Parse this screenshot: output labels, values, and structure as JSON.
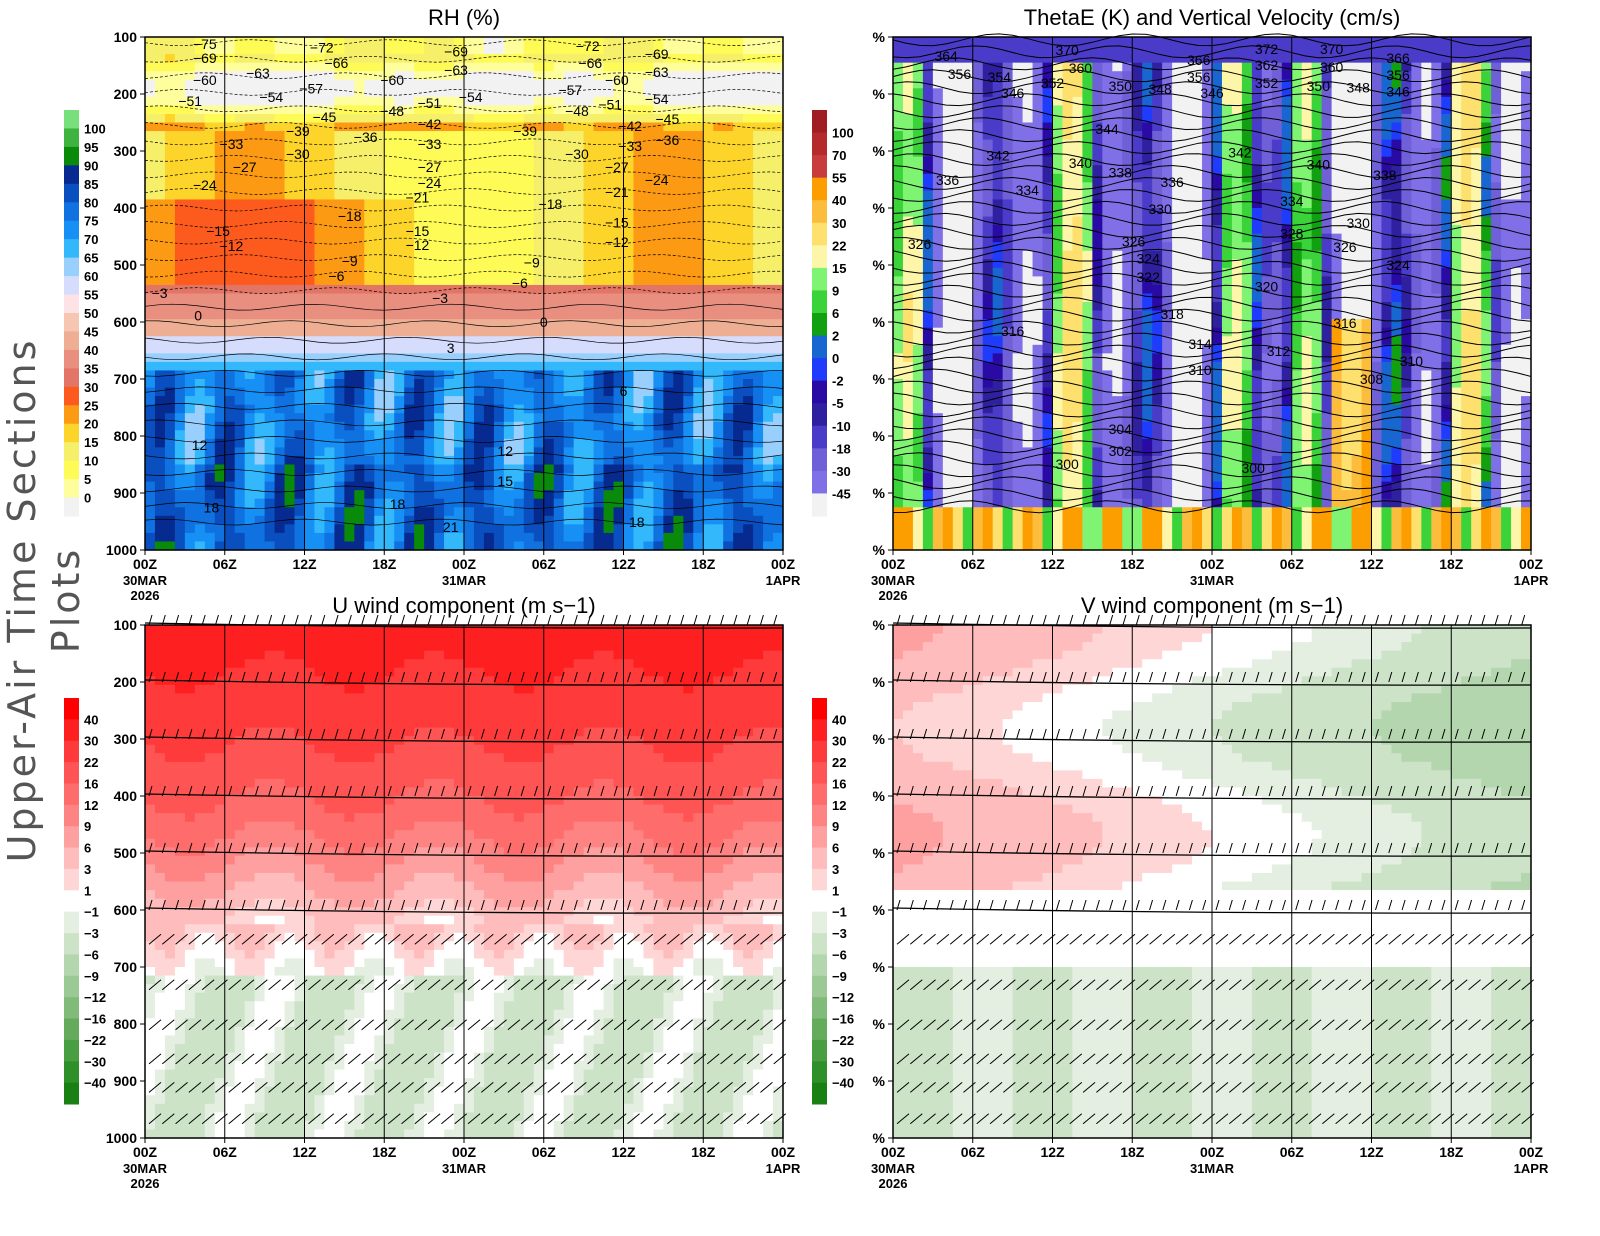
{
  "side_title": "Upper-Air Time Sections Plots",
  "time_axis": {
    "ticks": [
      "00Z",
      "06Z",
      "12Z",
      "18Z",
      "00Z",
      "06Z",
      "12Z",
      "18Z",
      "00Z"
    ],
    "dates": [
      [
        "30MAR",
        "2026"
      ],
      [],
      [],
      [],
      [
        "31MAR"
      ],
      [],
      [],
      [],
      [
        "1APR"
      ]
    ]
  },
  "chart_data": [
    {
      "type": "heatmap",
      "title": "RH (%)",
      "ylabels": [
        "100",
        "200",
        "300",
        "400",
        "500",
        "600",
        "700",
        "800",
        "900",
        "1000"
      ],
      "ylim": [
        100,
        1000
      ],
      "xlim": [
        0,
        48
      ],
      "colorbar": {
        "labels": [
          "100",
          "95",
          "90",
          "85",
          "80",
          "75",
          "70",
          "65",
          "60",
          "55",
          "50",
          "45",
          "40",
          "35",
          "30",
          "25",
          "20",
          "15",
          "10",
          "5",
          "0"
        ],
        "colors": [
          "#77e07a",
          "#3fb33f",
          "#0a8a0a",
          "#062a8f",
          "#0a4fbf",
          "#0f72e0",
          "#1790f5",
          "#33b8fc",
          "#98cffc",
          "#d5dcfc",
          "#fde3e5",
          "#f6c6b2",
          "#eeae94",
          "#e98f80",
          "#e27566",
          "#fd5a1e",
          "#fd9a14",
          "#fdd52a",
          "#f6ef6a",
          "#fefb57",
          "#fefe9d",
          "#f2f2f2"
        ]
      },
      "contour_labels": [
        [
          "-75",
          4.5,
          112
        ],
        [
          "-69",
          4.5,
          137
        ],
        [
          "-60",
          4.5,
          175
        ],
        [
          "-51",
          3.4,
          212
        ],
        [
          "-63",
          8.5,
          163
        ],
        [
          "-54",
          9.5,
          205
        ],
        [
          "-57",
          12.5,
          190
        ],
        [
          "-72",
          13.3,
          118
        ],
        [
          "-66",
          14.4,
          146
        ],
        [
          "-45",
          13.5,
          240
        ],
        [
          "-39",
          11.5,
          265
        ],
        [
          "-30",
          11.5,
          305
        ],
        [
          "-33",
          6.5,
          288
        ],
        [
          "-27",
          7.5,
          328
        ],
        [
          "-24",
          4.5,
          360
        ],
        [
          "-15",
          5.5,
          440
        ],
        [
          "-12",
          6.5,
          467
        ],
        [
          "-6",
          14.4,
          519
        ],
        [
          "-9",
          15.4,
          493
        ],
        [
          "-3",
          1.1,
          549
        ],
        [
          "0",
          4,
          589
        ],
        [
          "-60",
          18.6,
          175
        ],
        [
          "-48",
          18.6,
          230
        ],
        [
          "-36",
          16.6,
          275
        ],
        [
          "-18",
          15.4,
          414
        ],
        [
          "-69",
          23.4,
          125
        ],
        [
          "-63",
          23.4,
          158
        ],
        [
          "-51",
          21.4,
          216
        ],
        [
          "-54",
          24.5,
          205
        ],
        [
          "-42",
          21.4,
          253
        ],
        [
          "-33",
          21.4,
          288
        ],
        [
          "-27",
          21.4,
          328
        ],
        [
          "-24",
          21.4,
          356
        ],
        [
          "-21",
          20.5,
          382
        ],
        [
          "-15",
          20.5,
          440
        ],
        [
          "-12",
          20.5,
          465
        ],
        [
          "-3",
          22.2,
          558
        ],
        [
          "3",
          23,
          646
        ],
        [
          "-39",
          28.6,
          265
        ],
        [
          "-18",
          30.5,
          393
        ],
        [
          "-9",
          29.1,
          496
        ],
        [
          "-6",
          28.2,
          532
        ],
        [
          "0",
          30,
          600
        ],
        [
          "-72",
          33.3,
          116
        ],
        [
          "-66",
          33.5,
          146
        ],
        [
          "-60",
          35.5,
          175
        ],
        [
          "-57",
          32,
          193
        ],
        [
          "-51",
          35,
          218
        ],
        [
          "-48",
          32.5,
          230
        ],
        [
          "-42",
          36.5,
          256
        ],
        [
          "-33",
          36.5,
          291
        ],
        [
          "-30",
          32.5,
          305
        ],
        [
          "-27",
          35.5,
          328
        ],
        [
          "-21",
          35.5,
          372
        ],
        [
          "-15",
          35.5,
          425
        ],
        [
          "-12",
          35.5,
          460
        ],
        [
          "-69",
          38.5,
          130
        ],
        [
          "-63",
          38.5,
          161
        ],
        [
          "-54",
          38.5,
          209
        ],
        [
          "-45",
          39.3,
          244
        ],
        [
          "-36",
          39.3,
          281
        ],
        [
          "-24",
          38.5,
          351
        ],
        [
          "6",
          36,
          721
        ],
        [
          "12",
          4.1,
          816
        ],
        [
          "18",
          5,
          925
        ],
        [
          "12",
          27.1,
          826
        ],
        [
          "15",
          27.1,
          879
        ],
        [
          "18",
          19,
          919
        ],
        [
          "21",
          23,
          960
        ],
        [
          "18",
          37,
          951
        ]
      ]
    },
    {
      "type": "heatmap",
      "title": "ThetaE (K) and Vertical Velocity (cm/s)",
      "ylabels": [
        "%",
        "%",
        "%",
        "%",
        "%",
        "%",
        "%",
        "%",
        "%",
        "%"
      ],
      "xlim": [
        0,
        48
      ],
      "colorbar": {
        "labels": [
          "100",
          "70",
          "55",
          "40",
          "30",
          "22",
          "15",
          "9",
          "6",
          "2",
          "0",
          "-2",
          "-5",
          "-10",
          "-18",
          "-30",
          "-45"
        ],
        "colors": [
          "#a01e22",
          "#b52a2a",
          "#c83c3c",
          "#fd9e00",
          "#fdbd3c",
          "#fde06e",
          "#fdf5a8",
          "#7ef472",
          "#3ad43a",
          "#10a010",
          "#1866d0",
          "#1f3cfd",
          "#2a0aa5",
          "#2f20a0",
          "#4a3cc8",
          "#7060d8",
          "#8070e8",
          "#f2f2f2"
        ]
      },
      "contour_labels": [
        [
          "364",
          4,
          133
        ],
        [
          "356",
          5,
          165
        ],
        [
          "354",
          8,
          170
        ],
        [
          "352",
          12,
          181
        ],
        [
          "346",
          9,
          198
        ],
        [
          "370",
          13.1,
          123
        ],
        [
          "360",
          14.1,
          154
        ],
        [
          "350",
          17.1,
          186
        ],
        [
          "348",
          20.1,
          191
        ],
        [
          "366",
          23,
          140
        ],
        [
          "356",
          23,
          170
        ],
        [
          "346",
          24,
          198
        ],
        [
          "372",
          28.1,
          121
        ],
        [
          "362",
          28.1,
          149
        ],
        [
          "352",
          28.1,
          181
        ],
        [
          "370",
          33,
          121
        ],
        [
          "360",
          33,
          153
        ],
        [
          "350",
          32,
          186
        ],
        [
          "348",
          35,
          189
        ],
        [
          "366",
          38,
          137
        ],
        [
          "356",
          38,
          167
        ],
        [
          "346",
          38,
          196
        ],
        [
          "344",
          16.1,
          261
        ],
        [
          "342",
          7.9,
          308
        ],
        [
          "340",
          14.1,
          321
        ],
        [
          "338",
          17.1,
          338
        ],
        [
          "336",
          21,
          354
        ],
        [
          "342",
          26.1,
          303
        ],
        [
          "340",
          32,
          324
        ],
        [
          "338",
          37,
          342
        ],
        [
          "336",
          4.1,
          351
        ],
        [
          "334",
          10.1,
          368
        ],
        [
          "330",
          20.1,
          402
        ],
        [
          "334",
          30,
          388
        ],
        [
          "330",
          35,
          426
        ],
        [
          "328",
          30,
          445
        ],
        [
          "326",
          2,
          463
        ],
        [
          "326",
          18.1,
          459
        ],
        [
          "324",
          19.2,
          489
        ],
        [
          "322",
          19.2,
          521
        ],
        [
          "326",
          34,
          468
        ],
        [
          "324",
          38,
          500
        ],
        [
          "320",
          28.1,
          538
        ],
        [
          "318",
          21,
          586
        ],
        [
          "316",
          9,
          616
        ],
        [
          "316",
          34,
          602
        ],
        [
          "314",
          23.1,
          639
        ],
        [
          "312",
          29,
          651
        ],
        [
          "310",
          23.1,
          684
        ],
        [
          "310",
          39,
          668
        ],
        [
          "308",
          36,
          700
        ],
        [
          "304",
          17.1,
          788
        ],
        [
          "302",
          17.1,
          826
        ],
        [
          "300",
          13.1,
          849
        ],
        [
          "300",
          27.1,
          856
        ]
      ]
    },
    {
      "type": "heatmap",
      "title": "U wind component (m s−1)",
      "ylabels": [
        "100",
        "200",
        "300",
        "400",
        "500",
        "600",
        "700",
        "800",
        "900",
        "1000"
      ],
      "xlim": [
        0,
        48
      ],
      "colorbar": {
        "labels": [
          "40",
          "30",
          "22",
          "16",
          "12",
          "9",
          "6",
          "3",
          "1",
          "−1",
          "−3",
          "−6",
          "−9",
          "−12",
          "−16",
          "−22",
          "−30",
          "−40"
        ],
        "colors": [
          "#fe0000",
          "#fe2020",
          "#fe3a3a",
          "#fe5454",
          "#fe6c6c",
          "#fe8484",
          "#fea0a0",
          "#febcbc",
          "#fed6d6",
          "#ffffff",
          "#e4efe2",
          "#cce3c8",
          "#b4d6ae",
          "#9bc995",
          "#80bb79",
          "#64ac5c",
          "#4a9e42",
          "#2f8f28",
          "#1a8014"
        ]
      }
    },
    {
      "type": "heatmap",
      "title": "V wind component (m s−1)",
      "ylabels": [
        "%",
        "%",
        "%",
        "%",
        "%",
        "%",
        "%",
        "%",
        "%",
        "%"
      ],
      "xlim": [
        0,
        48
      ]
    }
  ]
}
